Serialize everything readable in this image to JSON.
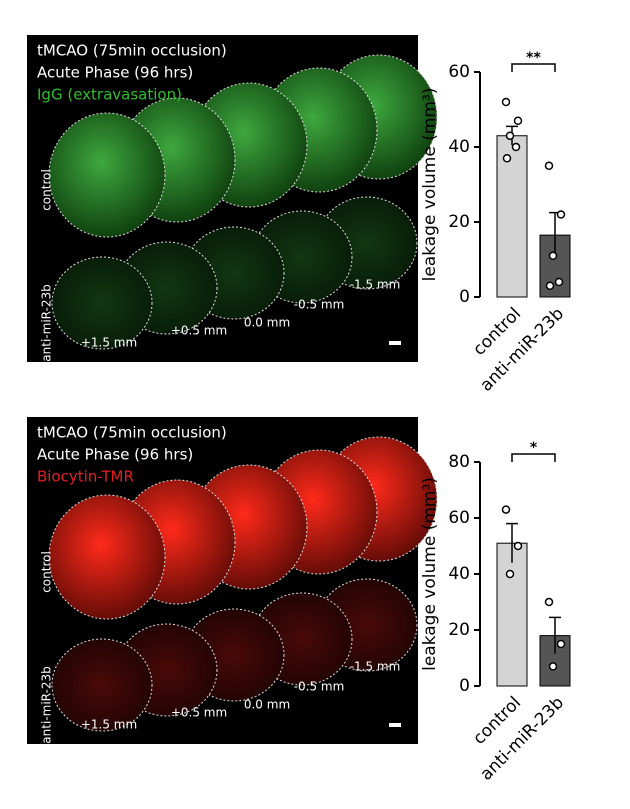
{
  "images": [
    {
      "lines": [
        "tMCAO (75min occlusion)",
        "Acute Phase (96 hrs)"
      ],
      "stain": "IgG (extravasation)",
      "stain_color": "#2fbf2f",
      "rows": [
        "control",
        "anti-miR-23b"
      ],
      "depths": [
        "+1.5 mm",
        "+0.5 mm",
        "0.0 mm",
        "-0.5 mm",
        "-1.5 mm"
      ]
    },
    {
      "lines": [
        "tMCAO (75min occlusion)",
        "Acute Phase (96 hrs)"
      ],
      "stain": "Biocytin-TMR",
      "stain_color": "#e32020",
      "rows": [
        "control",
        "anti-miR-23b"
      ],
      "depths": [
        "+1.5 mm",
        "+0.5 mm",
        "0.0 mm",
        "-0.5 mm",
        "-1.5 mm"
      ]
    }
  ],
  "chart_data": [
    {
      "type": "bar",
      "ylabel": "leakage volume (mm³)",
      "categories": [
        "control",
        "anti-miR-23b"
      ],
      "values": [
        43,
        16.5
      ],
      "errors": [
        2.5,
        6
      ],
      "colors": [
        "#d4d4d4",
        "#555555"
      ],
      "points": [
        [
          52,
          47,
          43,
          40,
          37
        ],
        [
          35,
          22,
          11,
          4,
          3
        ]
      ],
      "annotation": "**",
      "ylim": [
        0,
        60
      ],
      "yticks": [
        0,
        20,
        40,
        60
      ]
    },
    {
      "type": "bar",
      "ylabel": "leakage volume (mm³)",
      "categories": [
        "control",
        "anti-miR-23b"
      ],
      "values": [
        51,
        18
      ],
      "errors": [
        7,
        6.5
      ],
      "colors": [
        "#d4d4d4",
        "#555555"
      ],
      "points": [
        [
          63,
          50,
          40
        ],
        [
          30,
          15,
          7
        ]
      ],
      "annotation": "*",
      "ylim": [
        0,
        80
      ],
      "yticks": [
        0,
        20,
        40,
        60,
        80
      ]
    }
  ]
}
